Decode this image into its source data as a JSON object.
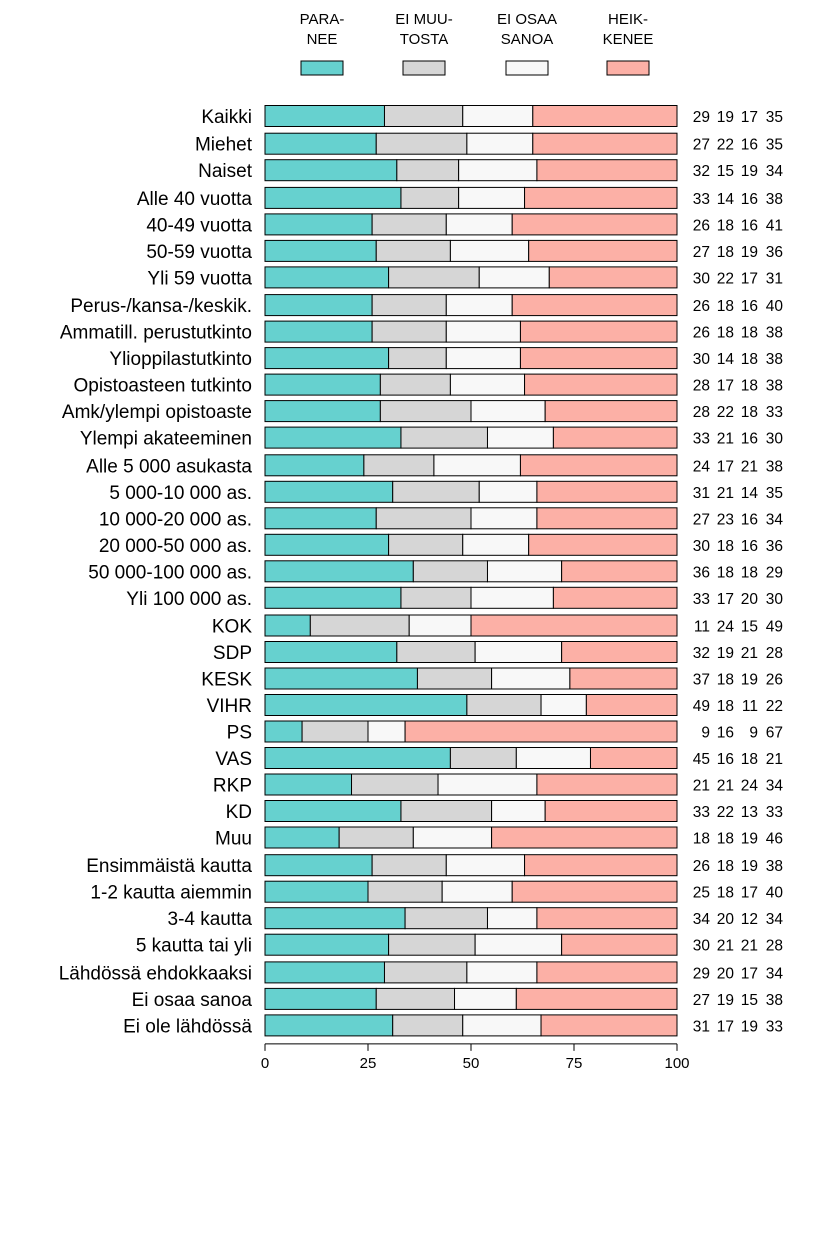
{
  "chart_data": {
    "type": "bar",
    "orientation": "horizontal",
    "stacked": true,
    "xlim": [
      0,
      100
    ],
    "xticks": [
      0,
      25,
      50,
      75,
      100
    ],
    "series": [
      {
        "name": [
          "PARA-",
          "NEE"
        ],
        "color": "#66d1cf"
      },
      {
        "name": [
          "EI MUU-",
          "TOSTA"
        ],
        "color": "#d6d6d6"
      },
      {
        "name": [
          "EI OSAA",
          "SANOA"
        ],
        "color": "#f8f8f8"
      },
      {
        "name": [
          "HEIK-",
          "KENEE"
        ],
        "color": "#fcb0a6"
      }
    ],
    "groups": [
      [
        {
          "label": "Kaikki",
          "values": [
            29,
            19,
            17,
            35
          ]
        }
      ],
      [
        {
          "label": "Miehet",
          "values": [
            27,
            22,
            16,
            35
          ]
        },
        {
          "label": "Naiset",
          "values": [
            32,
            15,
            19,
            34
          ]
        }
      ],
      [
        {
          "label": "Alle 40 vuotta",
          "values": [
            33,
            14,
            16,
            38
          ]
        },
        {
          "label": "40-49 vuotta",
          "values": [
            26,
            18,
            16,
            41
          ]
        },
        {
          "label": "50-59 vuotta",
          "values": [
            27,
            18,
            19,
            36
          ]
        },
        {
          "label": "Yli 59 vuotta",
          "values": [
            30,
            22,
            17,
            31
          ]
        }
      ],
      [
        {
          "label": "Perus-/kansa-/keskik.",
          "values": [
            26,
            18,
            16,
            40
          ]
        },
        {
          "label": "Ammatill. perustutkinto",
          "values": [
            26,
            18,
            18,
            38
          ]
        },
        {
          "label": "Ylioppilastutkinto",
          "values": [
            30,
            14,
            18,
            38
          ]
        },
        {
          "label": "Opistoasteen tutkinto",
          "values": [
            28,
            17,
            18,
            38
          ]
        },
        {
          "label": "Amk/ylempi opistoaste",
          "values": [
            28,
            22,
            18,
            33
          ]
        },
        {
          "label": "Ylempi akateeminen",
          "values": [
            33,
            21,
            16,
            30
          ]
        }
      ],
      [
        {
          "label": "Alle 5 000 asukasta",
          "values": [
            24,
            17,
            21,
            38
          ]
        },
        {
          "label": "5 000-10 000 as.",
          "values": [
            31,
            21,
            14,
            35
          ]
        },
        {
          "label": "10 000-20 000 as.",
          "values": [
            27,
            23,
            16,
            34
          ]
        },
        {
          "label": "20 000-50 000 as.",
          "values": [
            30,
            18,
            16,
            36
          ]
        },
        {
          "label": "50 000-100 000 as.",
          "values": [
            36,
            18,
            18,
            29
          ]
        },
        {
          "label": "Yli 100 000 as.",
          "values": [
            33,
            17,
            20,
            30
          ]
        }
      ],
      [
        {
          "label": "KOK",
          "values": [
            11,
            24,
            15,
            49
          ]
        },
        {
          "label": "SDP",
          "values": [
            32,
            19,
            21,
            28
          ]
        },
        {
          "label": "KESK",
          "values": [
            37,
            18,
            19,
            26
          ]
        },
        {
          "label": "VIHR",
          "values": [
            49,
            18,
            11,
            22
          ]
        },
        {
          "label": "PS",
          "values": [
            9,
            16,
            9,
            67
          ]
        },
        {
          "label": "VAS",
          "values": [
            45,
            16,
            18,
            21
          ]
        },
        {
          "label": "RKP",
          "values": [
            21,
            21,
            24,
            34
          ]
        },
        {
          "label": "KD",
          "values": [
            33,
            22,
            13,
            33
          ]
        },
        {
          "label": "Muu",
          "values": [
            18,
            18,
            19,
            46
          ]
        }
      ],
      [
        {
          "label": "Ensimmäistä kautta",
          "values": [
            26,
            18,
            19,
            38
          ]
        },
        {
          "label": "1-2 kautta aiemmin",
          "values": [
            25,
            18,
            17,
            40
          ]
        },
        {
          "label": "3-4 kautta",
          "values": [
            34,
            20,
            12,
            34
          ]
        },
        {
          "label": "5 kautta tai yli",
          "values": [
            30,
            21,
            21,
            28
          ]
        }
      ],
      [
        {
          "label": "Lähdössä ehdokkaaksi",
          "values": [
            29,
            20,
            17,
            34
          ]
        },
        {
          "label": "Ei osaa sanoa",
          "values": [
            27,
            19,
            15,
            38
          ]
        },
        {
          "label": "Ei ole lähdössä",
          "values": [
            31,
            17,
            19,
            33
          ]
        }
      ]
    ]
  }
}
